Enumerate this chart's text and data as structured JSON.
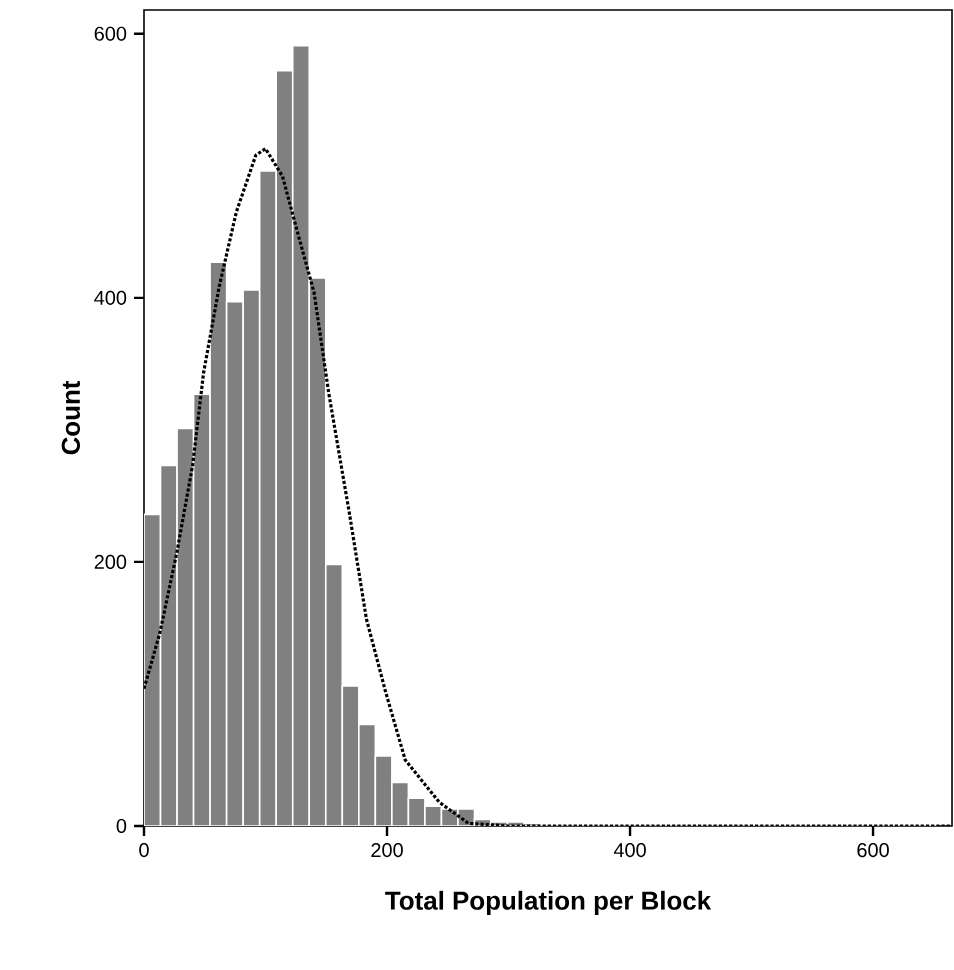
{
  "chart_data": {
    "type": "histogram",
    "xlabel": "Total Population per Block",
    "ylabel": "Count",
    "bins": [
      0,
      13.6,
      27.2,
      40.8,
      54.4,
      68,
      81.6,
      95.2,
      108.8,
      122.4,
      136,
      149.6,
      163.2,
      176.8,
      190.4,
      204,
      217.6,
      231.2,
      244.8,
      258.4,
      272,
      285.6,
      299.2,
      312.8,
      326.4,
      340,
      353.6,
      367.2,
      380.8,
      394.4,
      408,
      421.6,
      435.2,
      448.8,
      462.4,
      476,
      489.6,
      503.2,
      516.8,
      530.4,
      544,
      557.6,
      571.2,
      584.8,
      598.4,
      612,
      625.6,
      639.2,
      652.8
    ],
    "series": [
      {
        "color": "#808080",
        "values": [
          236,
          273,
          301,
          327,
          427,
          397,
          406,
          496,
          572,
          591,
          415,
          198,
          106,
          77,
          53,
          33,
          21,
          15,
          13,
          13,
          5,
          3,
          3,
          2,
          0,
          0,
          0,
          0,
          0,
          0,
          0,
          0,
          0,
          0,
          0,
          0,
          0,
          0,
          0,
          0,
          0,
          0,
          0,
          0,
          0,
          0,
          0,
          0
        ]
      },
      {
        "type": "line",
        "color": "#000000",
        "line_style": "dotted",
        "x": [
          0,
          13,
          27,
          40,
          49,
          62,
          76,
          92,
          100,
          114,
          128,
          140,
          152,
          169,
          183,
          199,
          215,
          243,
          267,
          300,
          400,
          500,
          600,
          665
        ],
        "values": [
          104,
          146,
          207,
          273,
          343,
          409,
          465,
          508,
          513,
          492,
          444,
          404,
          328,
          237,
          157,
          101,
          50,
          18,
          2,
          0,
          0,
          0,
          0,
          0
        ]
      }
    ],
    "xlim": [
      0,
      665
    ],
    "ylim": [
      0,
      618
    ],
    "xticks": [
      0,
      200,
      400,
      600
    ],
    "yticks": [
      0,
      200,
      400,
      600
    ]
  }
}
